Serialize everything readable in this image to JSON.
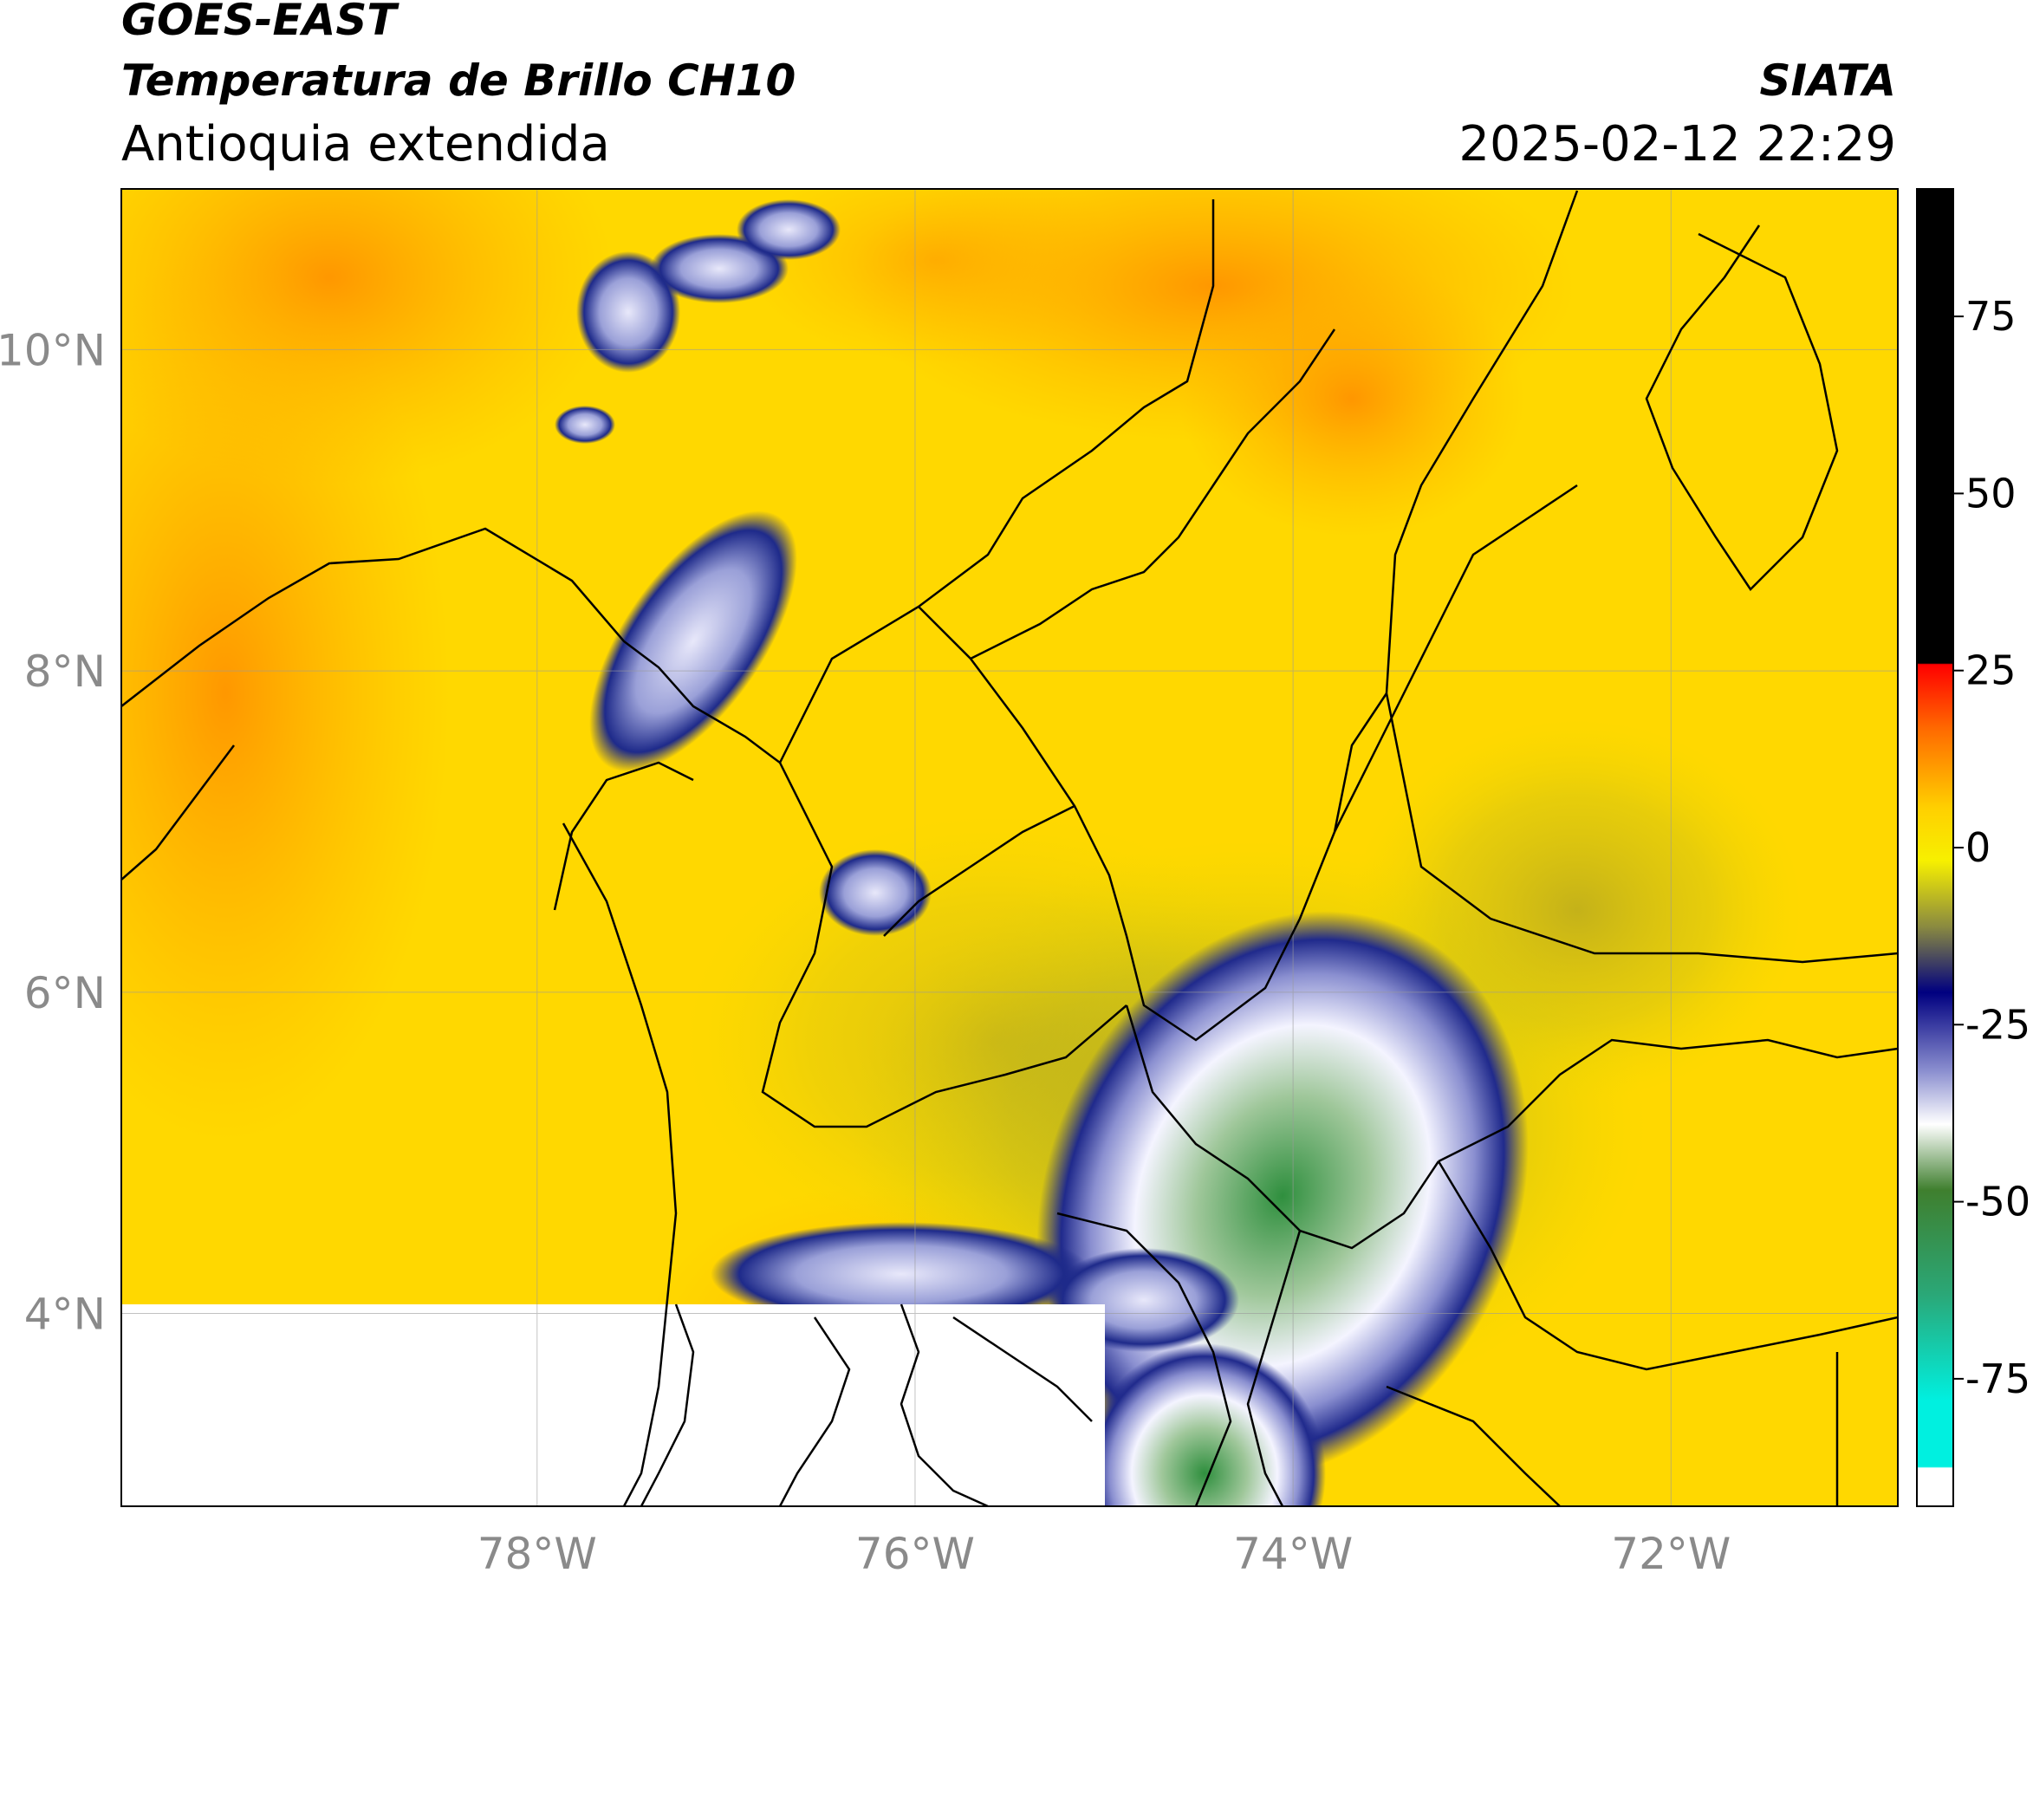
{
  "header": {
    "satellite": "GOES-EAST",
    "product": "Temperatura de Brillo CH10",
    "region": "Antioquia extendida",
    "agency": "SIATA",
    "timestamp": "2025-02-12 22:29"
  },
  "map": {
    "lon_range": [
      -80.2,
      -70.8
    ],
    "lat_range": [
      2.8,
      11.0
    ],
    "lon_ticks": [
      {
        "value": -78,
        "label": "78°W"
      },
      {
        "value": -76,
        "label": "76°W"
      },
      {
        "value": -74,
        "label": "74°W"
      },
      {
        "value": -72,
        "label": "72°W"
      }
    ],
    "lat_ticks": [
      {
        "value": 10,
        "label": "10°N"
      },
      {
        "value": 8,
        "label": "8°N"
      },
      {
        "value": 6,
        "label": "6°N"
      },
      {
        "value": 4,
        "label": "4°N"
      }
    ],
    "grid": true,
    "missing_data_area": "lower-left (no data)",
    "colors": {
      "warm_background": "#ffd400",
      "orange": "#ff9c00",
      "storm_blue": "#202a8c",
      "storm_white": "#f4f4ff",
      "storm_green": "#2f8f3e"
    }
  },
  "colorbar": {
    "ticks": [
      {
        "value": 75,
        "label": "75"
      },
      {
        "value": 50,
        "label": "50"
      },
      {
        "value": 25,
        "label": "25"
      },
      {
        "value": 0,
        "label": "0"
      },
      {
        "value": -25,
        "label": "-25"
      },
      {
        "value": -50,
        "label": "-50"
      },
      {
        "value": -75,
        "label": "-75"
      }
    ],
    "range": [
      -93,
      93
    ]
  }
}
